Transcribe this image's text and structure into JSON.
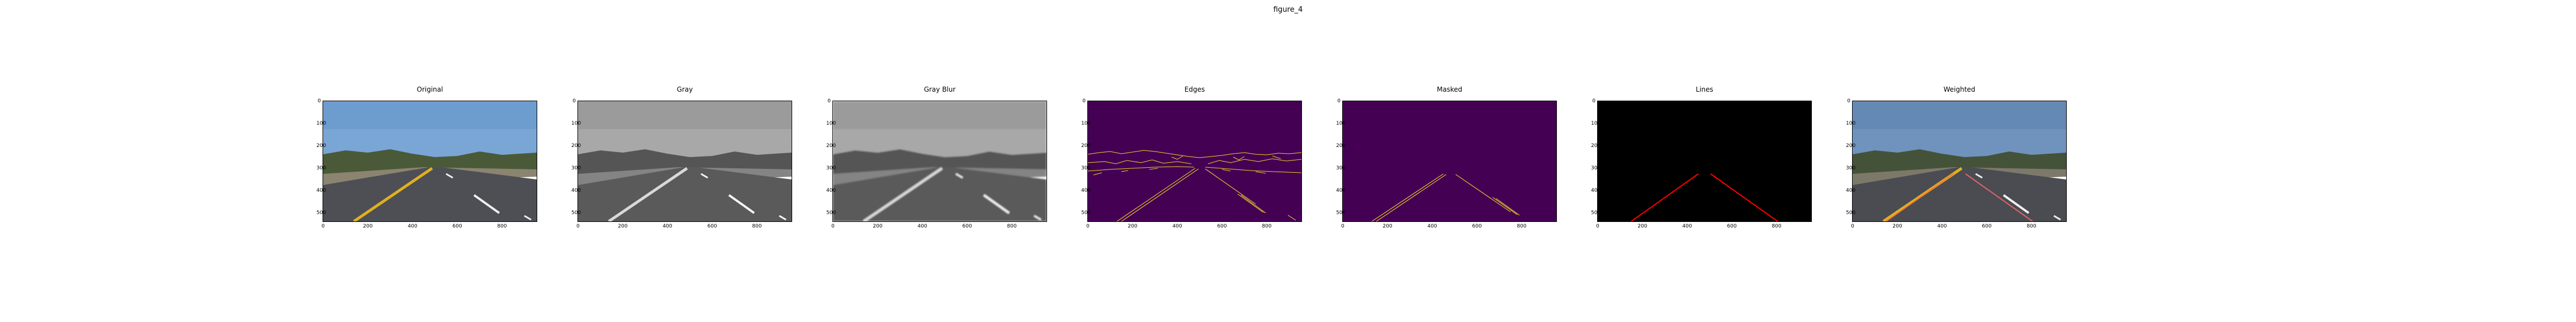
{
  "figure": {
    "title": "figure_4"
  },
  "axes": {
    "y_ticks": [
      "0",
      "100",
      "200",
      "300",
      "400",
      "500"
    ],
    "x_ticks": [
      "0",
      "200",
      "400",
      "600",
      "800"
    ]
  },
  "panels": [
    {
      "title": "Original",
      "kind": "original"
    },
    {
      "title": "Gray",
      "kind": "gray"
    },
    {
      "title": "Gray Blur",
      "kind": "gray_blur"
    },
    {
      "title": "Edges",
      "kind": "edges"
    },
    {
      "title": "Masked",
      "kind": "masked"
    },
    {
      "title": "Lines",
      "kind": "lines"
    },
    {
      "title": "Weighted",
      "kind": "weighted"
    }
  ],
  "colors": {
    "sky": "#7aa6d6",
    "trees": "#4a5a38",
    "road": "#4d4f55",
    "lane_yellow": "#e0b020",
    "lane_white": "#f0f0f0",
    "viridis_dark": "#440154",
    "viridis_yellow": "#fde725",
    "line_red": "#ff0000"
  }
}
